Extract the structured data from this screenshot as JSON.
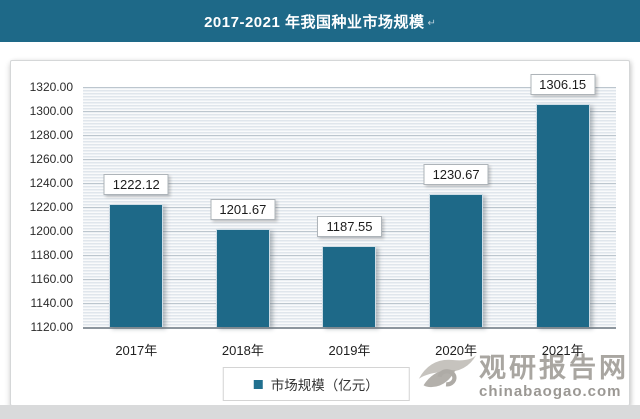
{
  "header": {
    "title": "2017-2021 年我国种业市场规模",
    "return_mark": "↵"
  },
  "chart_data": {
    "type": "bar",
    "title": "2017-2021 年我国种业市场规模",
    "categories": [
      "2017年",
      "2018年",
      "2019年",
      "2020年",
      "2021年"
    ],
    "values": [
      1222.12,
      1201.67,
      1187.55,
      1230.67,
      1306.15
    ],
    "value_labels": [
      "1222.12",
      "1201.67",
      "1187.55",
      "1230.67",
      "1306.15"
    ],
    "series_name": "市场规模（亿元）",
    "xlabel": "",
    "ylabel": "",
    "ylim": [
      1120,
      1320
    ],
    "ytick_step": 20,
    "yticks": [
      "1320.00",
      "1300.00",
      "1280.00",
      "1260.00",
      "1240.00",
      "1220.00",
      "1200.00",
      "1180.00",
      "1160.00",
      "1140.00",
      "1120.00"
    ],
    "grid": true,
    "legend_position": "bottom",
    "bar_color": "#1e6988"
  },
  "legend": {
    "label": "市场规模（亿元）"
  },
  "watermark": {
    "site_name": "观研报告网",
    "site_url": "chinabaogao.com",
    "logo": "guanyan-swirl-logo"
  },
  "colors": {
    "accent": "#1e6988",
    "header_bg": "#1e6988",
    "bar": "#1e6988",
    "legend_swatch": "#21708f",
    "watermark_gray": "#a9a6a1",
    "plot_stripe": "#e0e6ec"
  }
}
